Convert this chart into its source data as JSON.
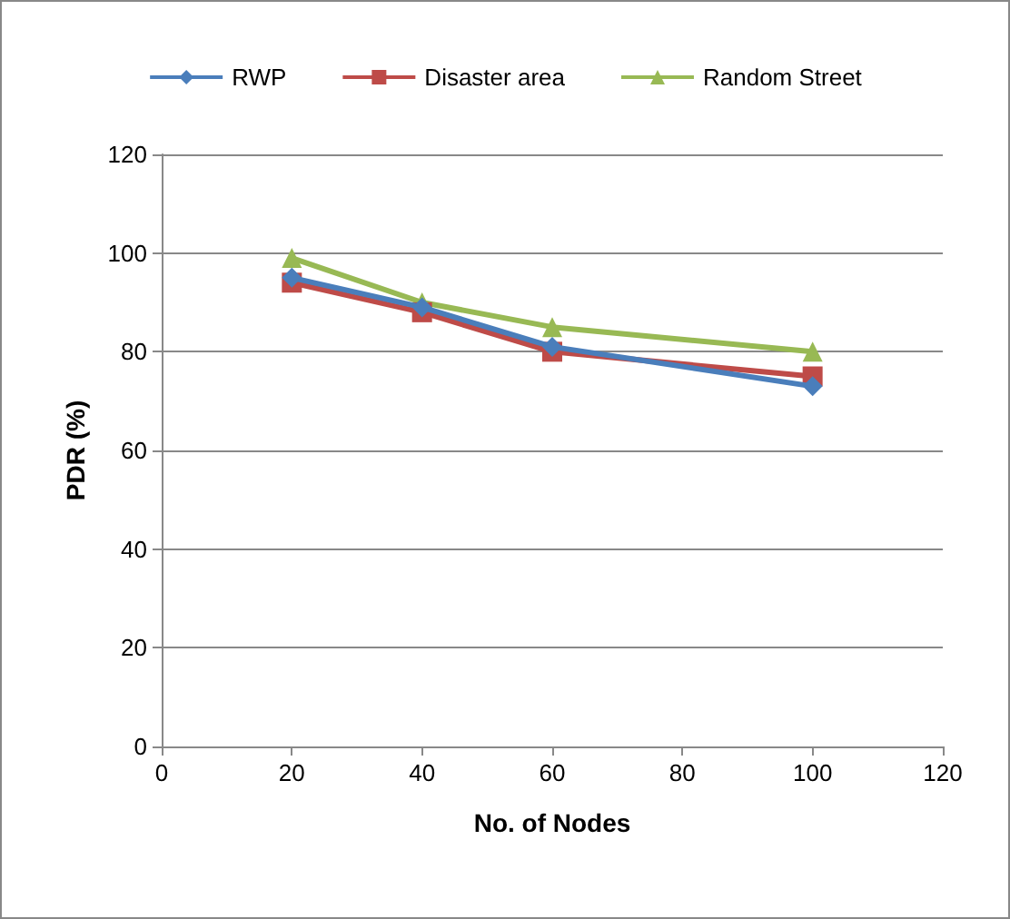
{
  "chart_data": {
    "type": "line",
    "xlabel": "No. of Nodes",
    "ylabel": "PDR (%)",
    "x": [
      20,
      40,
      60,
      100
    ],
    "series": [
      {
        "name": "RWP",
        "color": "#4a7ebb",
        "values": [
          95,
          89,
          81,
          73
        ],
        "marker": "diamond"
      },
      {
        "name": "Disaster area",
        "color": "#be4b48",
        "values": [
          94,
          88,
          80,
          75
        ],
        "marker": "square"
      },
      {
        "name": "Random Street",
        "color": "#98b954",
        "values": [
          99,
          90,
          85,
          80
        ],
        "marker": "triangle"
      }
    ],
    "xlim": [
      0,
      120
    ],
    "xticks": [
      0,
      20,
      40,
      60,
      80,
      100,
      120
    ],
    "ylim": [
      0,
      120
    ],
    "yticks": [
      0,
      20,
      40,
      60,
      80,
      100,
      120
    ],
    "grid": "y",
    "legend": "top",
    "line_style": "solid"
  }
}
